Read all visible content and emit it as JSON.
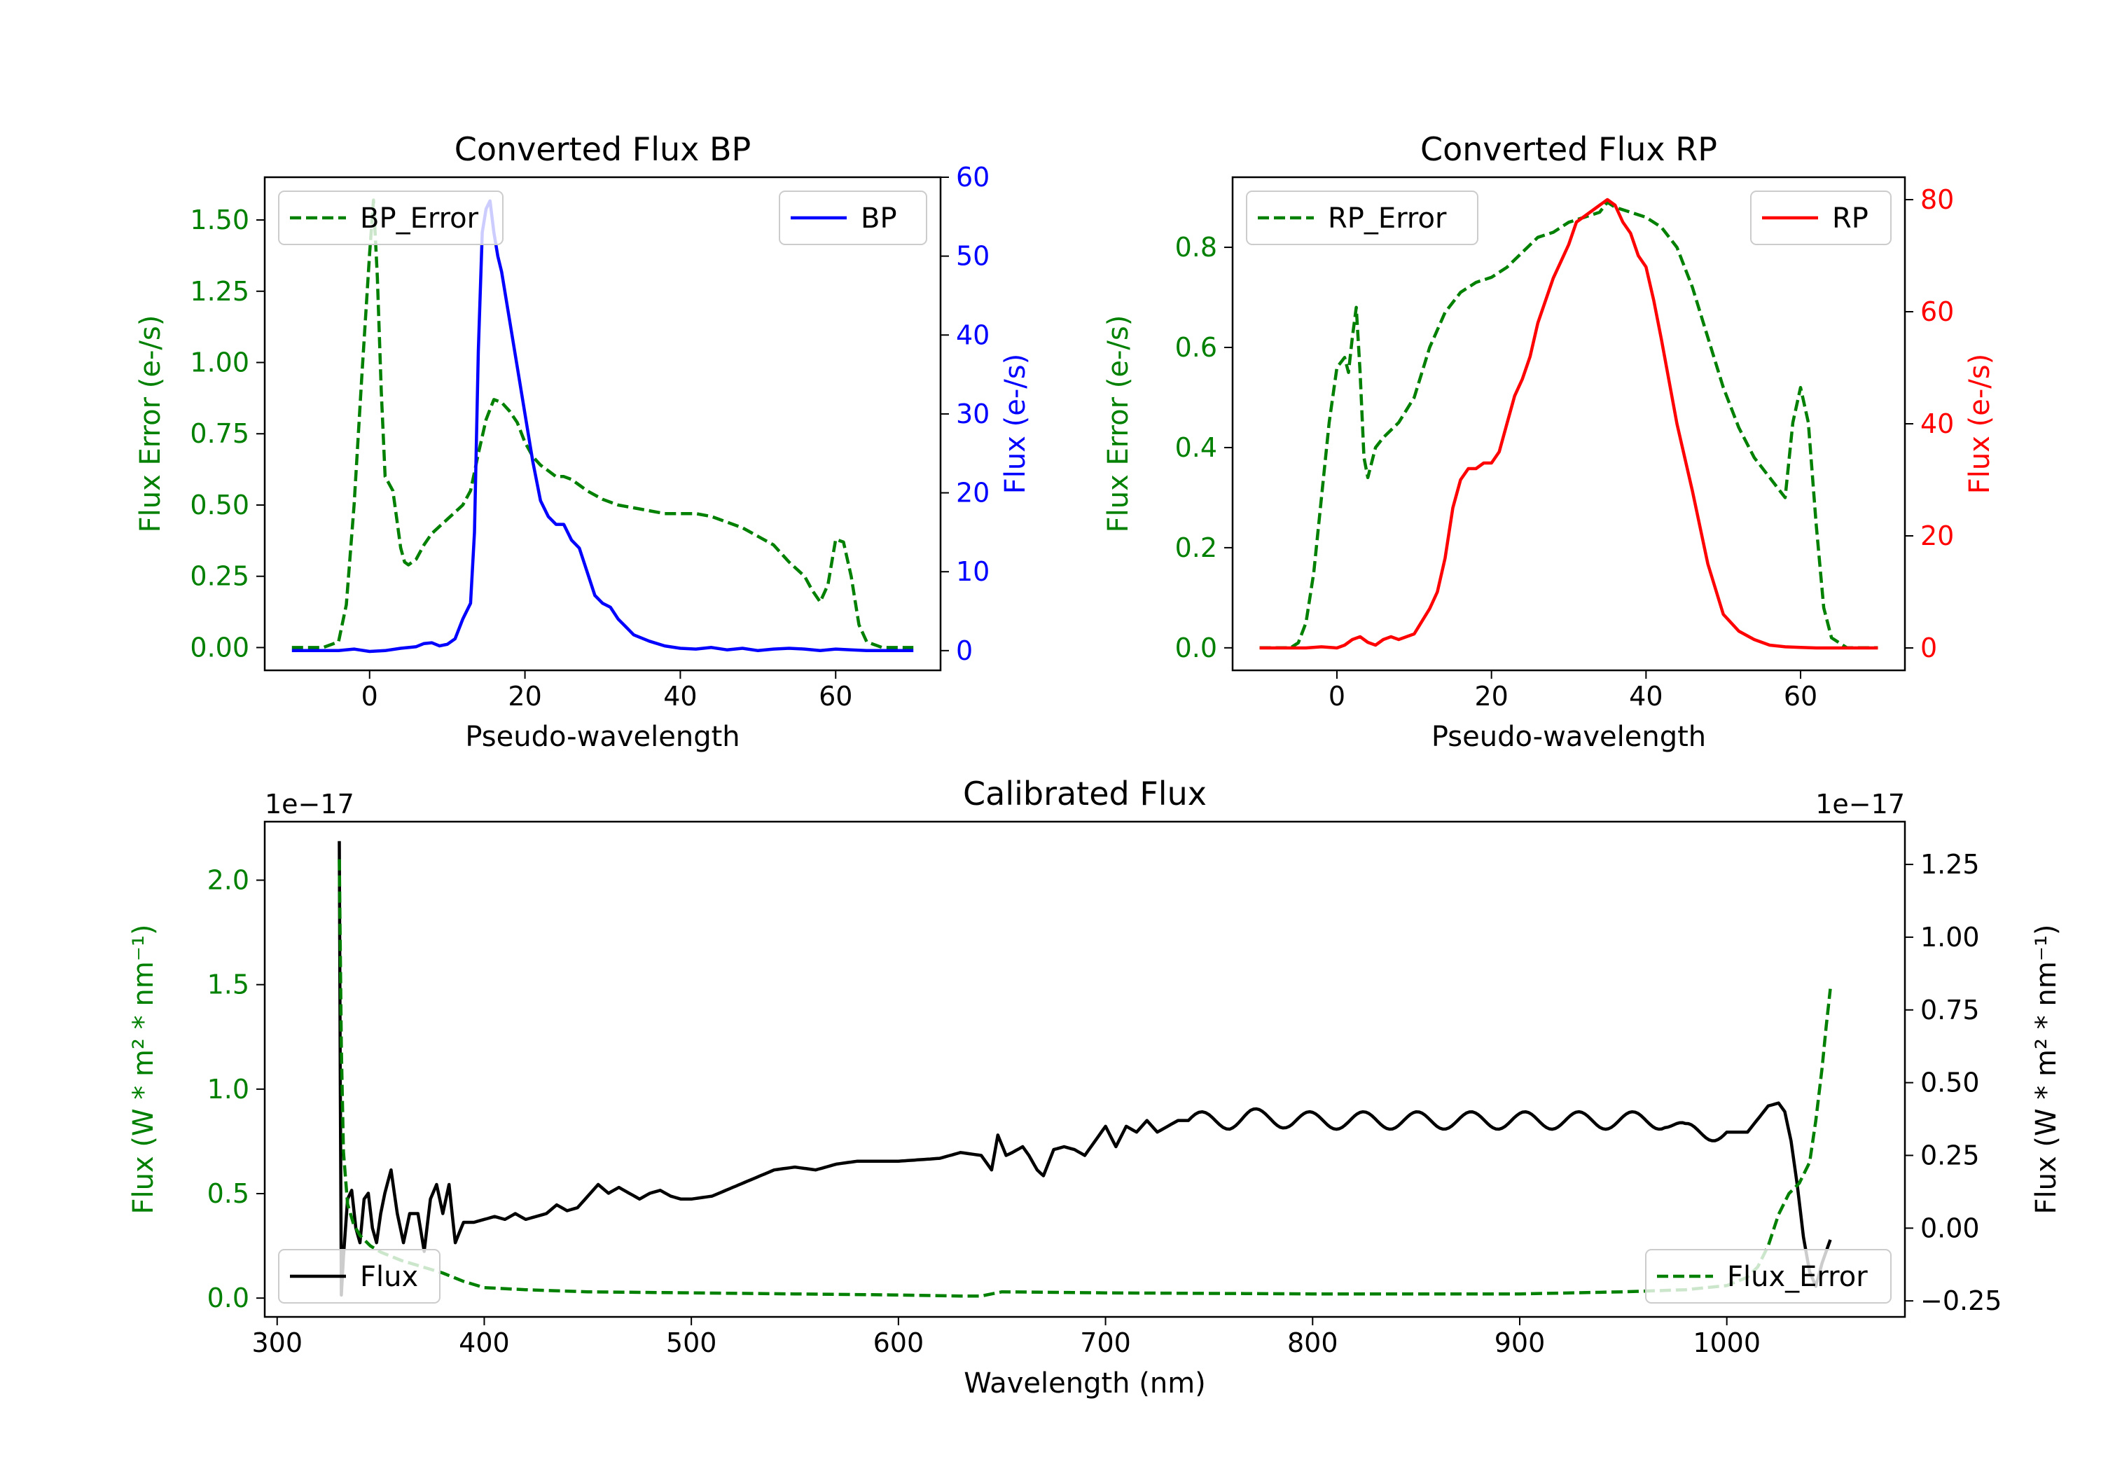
{
  "colors": {
    "green": "#008000",
    "blue": "#0000ff",
    "red": "#ff0000",
    "black": "#000000"
  },
  "chart_data": [
    {
      "type": "line",
      "title": "Converted Flux BP",
      "xlabel": "Pseudo-wavelength",
      "ylabel_left": "Flux Error (e-/s)",
      "ylabel_right": "Flux (e-/s)",
      "xlim": [
        -13.5,
        73.5
      ],
      "ylim_left": [
        -0.08,
        1.65
      ],
      "ylim_right": [
        -2.5,
        60
      ],
      "xticks": [
        0,
        20,
        40,
        60
      ],
      "xtick_labels": [
        "0",
        "20",
        "40",
        "60"
      ],
      "yticks_left": [
        0,
        0.25,
        0.5,
        0.75,
        1.0,
        1.25,
        1.5
      ],
      "yticks_left_labels": [
        "0.00",
        "0.25",
        "0.50",
        "0.75",
        "1.00",
        "1.25",
        "1.50"
      ],
      "yticks_right": [
        0,
        10,
        20,
        30,
        40,
        50,
        60
      ],
      "yticks_right_labels": [
        "0",
        "10",
        "20",
        "30",
        "40",
        "50",
        "60"
      ],
      "legend_left": "BP_Error",
      "legend_right": "BP",
      "series": [
        {
          "name": "BP_Error",
          "axis": "left",
          "style": "dashed",
          "color": "#008000",
          "x": [
            -10,
            -6,
            -4,
            -3,
            -2,
            -1,
            0,
            0.5,
            1,
            1.5,
            2,
            3,
            3.5,
            4,
            4.5,
            5,
            6,
            7,
            8,
            10,
            12,
            13,
            14,
            15,
            16,
            17,
            18,
            19,
            20,
            21,
            22,
            23,
            24,
            25,
            26,
            27,
            28,
            30,
            32,
            34,
            36,
            38,
            40,
            42,
            44,
            46,
            48,
            50,
            52,
            54,
            56,
            57,
            58,
            59,
            60,
            61,
            62,
            63,
            64,
            66,
            68,
            70
          ],
          "y": [
            0,
            0,
            0.02,
            0.15,
            0.5,
            0.95,
            1.38,
            1.57,
            1.3,
            0.9,
            0.6,
            0.55,
            0.45,
            0.35,
            0.3,
            0.29,
            0.31,
            0.36,
            0.4,
            0.45,
            0.5,
            0.55,
            0.68,
            0.8,
            0.87,
            0.86,
            0.83,
            0.79,
            0.72,
            0.67,
            0.64,
            0.62,
            0.6,
            0.6,
            0.59,
            0.57,
            0.55,
            0.52,
            0.5,
            0.49,
            0.48,
            0.47,
            0.47,
            0.47,
            0.46,
            0.44,
            0.42,
            0.39,
            0.36,
            0.3,
            0.25,
            0.2,
            0.16,
            0.22,
            0.38,
            0.37,
            0.25,
            0.08,
            0.02,
            0,
            0,
            0
          ]
        },
        {
          "name": "BP",
          "axis": "right",
          "style": "solid",
          "color": "#0000ff",
          "x": [
            -10,
            -4,
            -2,
            0,
            2,
            4,
            6,
            7,
            8,
            9,
            10,
            11,
            12,
            13,
            13.5,
            14,
            14.5,
            15,
            15.5,
            16,
            16.5,
            17,
            18,
            19,
            20,
            21,
            22,
            23,
            24,
            25,
            26,
            27,
            28,
            29,
            30,
            31,
            32,
            33,
            34,
            36,
            38,
            40,
            42,
            44,
            46,
            48,
            50,
            52,
            54,
            56,
            58,
            60,
            62,
            64,
            66,
            68,
            70
          ],
          "y": [
            0,
            0,
            0.2,
            -0.1,
            0,
            0.3,
            0.5,
            0.9,
            1,
            0.6,
            0.8,
            1.5,
            4,
            6,
            15,
            38,
            53,
            56,
            57,
            53,
            50,
            48,
            42,
            36,
            30,
            24,
            19,
            17,
            16,
            16,
            14,
            13,
            10,
            7,
            6,
            5.5,
            4,
            3,
            2,
            1.2,
            0.6,
            0.3,
            0.2,
            0.4,
            0.1,
            0.3,
            0,
            0.2,
            0.3,
            0.2,
            0,
            0.2,
            0.1,
            0,
            0,
            0,
            0
          ]
        }
      ]
    },
    {
      "type": "line",
      "title": "Converted Flux RP",
      "xlabel": "Pseudo-wavelength",
      "ylabel_left": "Flux Error (e-/s)",
      "ylabel_right": "Flux (e-/s)",
      "xlim": [
        -13.5,
        73.5
      ],
      "ylim_left": [
        -0.045,
        0.94
      ],
      "ylim_right": [
        -4,
        84
      ],
      "xticks": [
        0,
        20,
        40,
        60
      ],
      "xtick_labels": [
        "0",
        "20",
        "40",
        "60"
      ],
      "yticks_left": [
        0,
        0.2,
        0.4,
        0.6,
        0.8
      ],
      "yticks_left_labels": [
        "0.0",
        "0.2",
        "0.4",
        "0.6",
        "0.8"
      ],
      "yticks_right": [
        0,
        20,
        40,
        60,
        80
      ],
      "yticks_right_labels": [
        "0",
        "20",
        "40",
        "60",
        "80"
      ],
      "legend_left": "RP_Error",
      "legend_right": "RP",
      "series": [
        {
          "name": "RP_Error",
          "axis": "left",
          "style": "dashed",
          "color": "#008000",
          "x": [
            -10,
            -6,
            -5,
            -4,
            -3,
            -2,
            -1,
            0,
            1,
            1.5,
            2,
            2.5,
            3,
            3.5,
            4,
            5,
            6,
            8,
            10,
            12,
            14,
            16,
            18,
            20,
            22,
            24,
            26,
            28,
            30,
            32,
            34,
            35,
            36,
            38,
            40,
            42,
            44,
            46,
            48,
            50,
            52,
            54,
            55,
            56,
            57,
            58,
            59,
            60,
            61,
            62,
            63,
            64,
            66,
            68,
            70
          ],
          "y": [
            0,
            0,
            0.01,
            0.05,
            0.15,
            0.3,
            0.45,
            0.56,
            0.58,
            0.55,
            0.62,
            0.68,
            0.55,
            0.38,
            0.34,
            0.4,
            0.42,
            0.45,
            0.5,
            0.6,
            0.67,
            0.71,
            0.73,
            0.74,
            0.76,
            0.79,
            0.82,
            0.83,
            0.85,
            0.86,
            0.87,
            0.89,
            0.88,
            0.87,
            0.86,
            0.84,
            0.8,
            0.72,
            0.62,
            0.52,
            0.44,
            0.38,
            0.36,
            0.34,
            0.32,
            0.3,
            0.45,
            0.52,
            0.45,
            0.25,
            0.08,
            0.02,
            0,
            0,
            0
          ]
        },
        {
          "name": "RP",
          "axis": "right",
          "style": "solid",
          "color": "#ff0000",
          "x": [
            -10,
            -6,
            -4,
            -2,
            0,
            1,
            2,
            3,
            4,
            5,
            6,
            7,
            8,
            10,
            12,
            13,
            14,
            15,
            16,
            17,
            18,
            19,
            20,
            21,
            22,
            23,
            24,
            25,
            26,
            27,
            28,
            29,
            30,
            31,
            32,
            33,
            34,
            35,
            36,
            37,
            38,
            39,
            40,
            41,
            42,
            44,
            46,
            48,
            50,
            52,
            54,
            56,
            58,
            60,
            62,
            64,
            66,
            68,
            70
          ],
          "y": [
            0,
            0,
            0,
            0.2,
            0,
            0.5,
            1.5,
            2,
            1,
            0.5,
            1.5,
            2,
            1.5,
            2.5,
            7,
            10,
            16,
            25,
            30,
            32,
            32,
            33,
            33,
            35,
            40,
            45,
            48,
            52,
            58,
            62,
            66,
            69,
            72,
            76,
            77,
            78,
            79,
            80,
            79,
            76,
            74,
            70,
            68,
            62,
            55,
            40,
            28,
            15,
            6,
            3,
            1.5,
            0.5,
            0.2,
            0.1,
            0,
            0,
            0,
            0,
            0
          ]
        }
      ]
    },
    {
      "type": "line",
      "title": "Calibrated Flux",
      "xlabel": "Wavelength (nm)",
      "ylabel_left": "Flux (W * m² * nm⁻¹)",
      "ylabel_right": "Flux (W * m² * nm⁻¹)",
      "left_offset_text": "1e−17",
      "right_offset_text": "1e−17",
      "xlim": [
        294,
        1086
      ],
      "ylim_left": [
        -0.09,
        2.28
      ],
      "ylim_right": [
        -0.305,
        1.397
      ],
      "xticks": [
        300,
        400,
        500,
        600,
        700,
        800,
        900,
        1000
      ],
      "xtick_labels": [
        "300",
        "400",
        "500",
        "600",
        "700",
        "800",
        "900",
        "1000"
      ],
      "yticks_left": [
        0,
        0.5,
        1.0,
        1.5,
        2.0
      ],
      "yticks_left_labels": [
        "0.0",
        "0.5",
        "1.0",
        "1.5",
        "2.0"
      ],
      "yticks_right": [
        -0.25,
        0,
        0.25,
        0.5,
        0.75,
        1.0,
        1.25
      ],
      "yticks_right_labels": [
        "−0.25",
        "0.00",
        "0.25",
        "0.50",
        "0.75",
        "1.00",
        "1.25"
      ],
      "legend_left": "Flux",
      "legend_right": "Flux_Error",
      "series": [
        {
          "name": "Flux",
          "axis": "right",
          "style": "solid",
          "color": "#000000",
          "x": [
            330,
            330.5,
            331,
            332,
            334,
            336,
            338,
            340,
            342,
            344,
            346,
            348,
            350,
            352,
            355,
            358,
            361,
            364,
            368,
            371,
            374,
            377,
            380,
            383,
            386,
            390,
            395,
            400,
            405,
            410,
            415,
            420,
            425,
            430,
            435,
            440,
            445,
            450,
            455,
            460,
            465,
            470,
            475,
            480,
            485,
            490,
            495,
            500,
            510,
            520,
            530,
            540,
            550,
            560,
            570,
            580,
            590,
            600,
            620,
            630,
            640,
            645,
            648,
            652,
            655,
            660,
            663,
            667,
            670,
            675,
            680,
            685,
            690,
            695,
            700,
            705,
            710,
            715,
            720,
            725,
            730,
            735,
            740,
            745,
            750,
            755,
            760,
            770,
            780,
            790,
            800,
            810,
            820,
            830,
            840,
            850,
            860,
            870,
            880,
            890,
            900,
            910,
            920,
            930,
            940,
            950,
            960,
            970,
            980,
            990,
            1000,
            1010,
            1020,
            1025,
            1028,
            1031,
            1034,
            1037,
            1040,
            1043,
            1046,
            1048,
            1050
          ],
          "y": [
            1.33,
            0.5,
            -0.23,
            -0.1,
            0.1,
            0.13,
            0,
            -0.05,
            0.1,
            0.12,
            0,
            -0.05,
            0.05,
            0.12,
            0.2,
            0.05,
            -0.05,
            0.05,
            0.05,
            -0.08,
            0.1,
            0.15,
            0.05,
            0.15,
            -0.05,
            0.02,
            0.02,
            0.03,
            0.04,
            0.03,
            0.05,
            0.03,
            0.04,
            0.05,
            0.08,
            0.06,
            0.07,
            0.11,
            0.15,
            0.12,
            0.14,
            0.12,
            0.1,
            0.12,
            0.13,
            0.11,
            0.1,
            0.1,
            0.11,
            0.14,
            0.17,
            0.2,
            0.21,
            0.2,
            0.22,
            0.23,
            0.23,
            0.23,
            0.24,
            0.26,
            0.25,
            0.2,
            0.32,
            0.25,
            0.26,
            0.28,
            0.25,
            0.2,
            0.18,
            0.27,
            0.28,
            0.27,
            0.25,
            0.3,
            0.35,
            0.28,
            0.35,
            0.33,
            0.37,
            0.33,
            0.35,
            0.37,
            0.37,
            0.37,
            0.37,
            0.37,
            0.37,
            0.38,
            0.38,
            0.37,
            0.37,
            0.37,
            0.37,
            0.37,
            0.37,
            0.37,
            0.37,
            0.37,
            0.37,
            0.37,
            0.37,
            0.37,
            0.37,
            0.37,
            0.37,
            0.37,
            0.37,
            0.37,
            0.33,
            0.33,
            0.33,
            0.33,
            0.42,
            0.43,
            0.4,
            0.3,
            0.15,
            -0.03,
            -0.15,
            -0.2,
            -0.12,
            -0.08,
            -0.04
          ],
          "wiggle": {
            "from": 740,
            "to": 1000,
            "amplitude": 0.03,
            "period": 26
          }
        },
        {
          "name": "Flux_Error",
          "axis": "left",
          "style": "dashed",
          "color": "#008000",
          "x": [
            330,
            331,
            332,
            334,
            337,
            340,
            345,
            350,
            360,
            370,
            380,
            390,
            400,
            420,
            450,
            500,
            550,
            600,
            630,
            640,
            645,
            650,
            700,
            800,
            900,
            950,
            980,
            1000,
            1010,
            1015,
            1020,
            1025,
            1030,
            1035,
            1040,
            1043,
            1046,
            1048,
            1050
          ],
          "y": [
            2.1,
            1.2,
            0.7,
            0.45,
            0.35,
            0.3,
            0.25,
            0.22,
            0.18,
            0.15,
            0.12,
            0.08,
            0.05,
            0.04,
            0.03,
            0.025,
            0.02,
            0.015,
            0.01,
            0.01,
            0.02,
            0.03,
            0.025,
            0.02,
            0.02,
            0.03,
            0.04,
            0.06,
            0.1,
            0.15,
            0.25,
            0.4,
            0.5,
            0.55,
            0.65,
            0.85,
            1.1,
            1.3,
            1.48
          ]
        }
      ]
    }
  ]
}
